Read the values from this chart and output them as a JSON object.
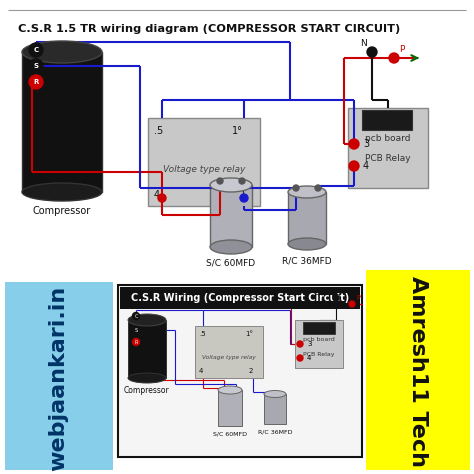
{
  "title": "C.S.R 1.5 TR wiring diagram (COMPRESSOR START CIRCUIT)",
  "subtitle": "C.S.R Wiring (Compressor Start Circuit)",
  "bg_color": "#ffffff",
  "wb_text": "webjaankari.in",
  "wb_bg": "#87ceeb",
  "amresh_text": "Amresh11 Tech",
  "amresh_bg": "#ffff00",
  "wire_blue": "#1a1acd",
  "wire_red": "#cc0000",
  "wire_black": "#111111",
  "relay_bg": "#c8c8c8",
  "pcb_bg": "#c8c8c8",
  "comp_label": "Compressor",
  "relay_label": "Voltage type relay",
  "pcb_label": "pcb board",
  "pcb_relay_label": "PCB Relay",
  "cap1_label": "S/C 60MFD",
  "cap2_label": "R/C 36MFD"
}
